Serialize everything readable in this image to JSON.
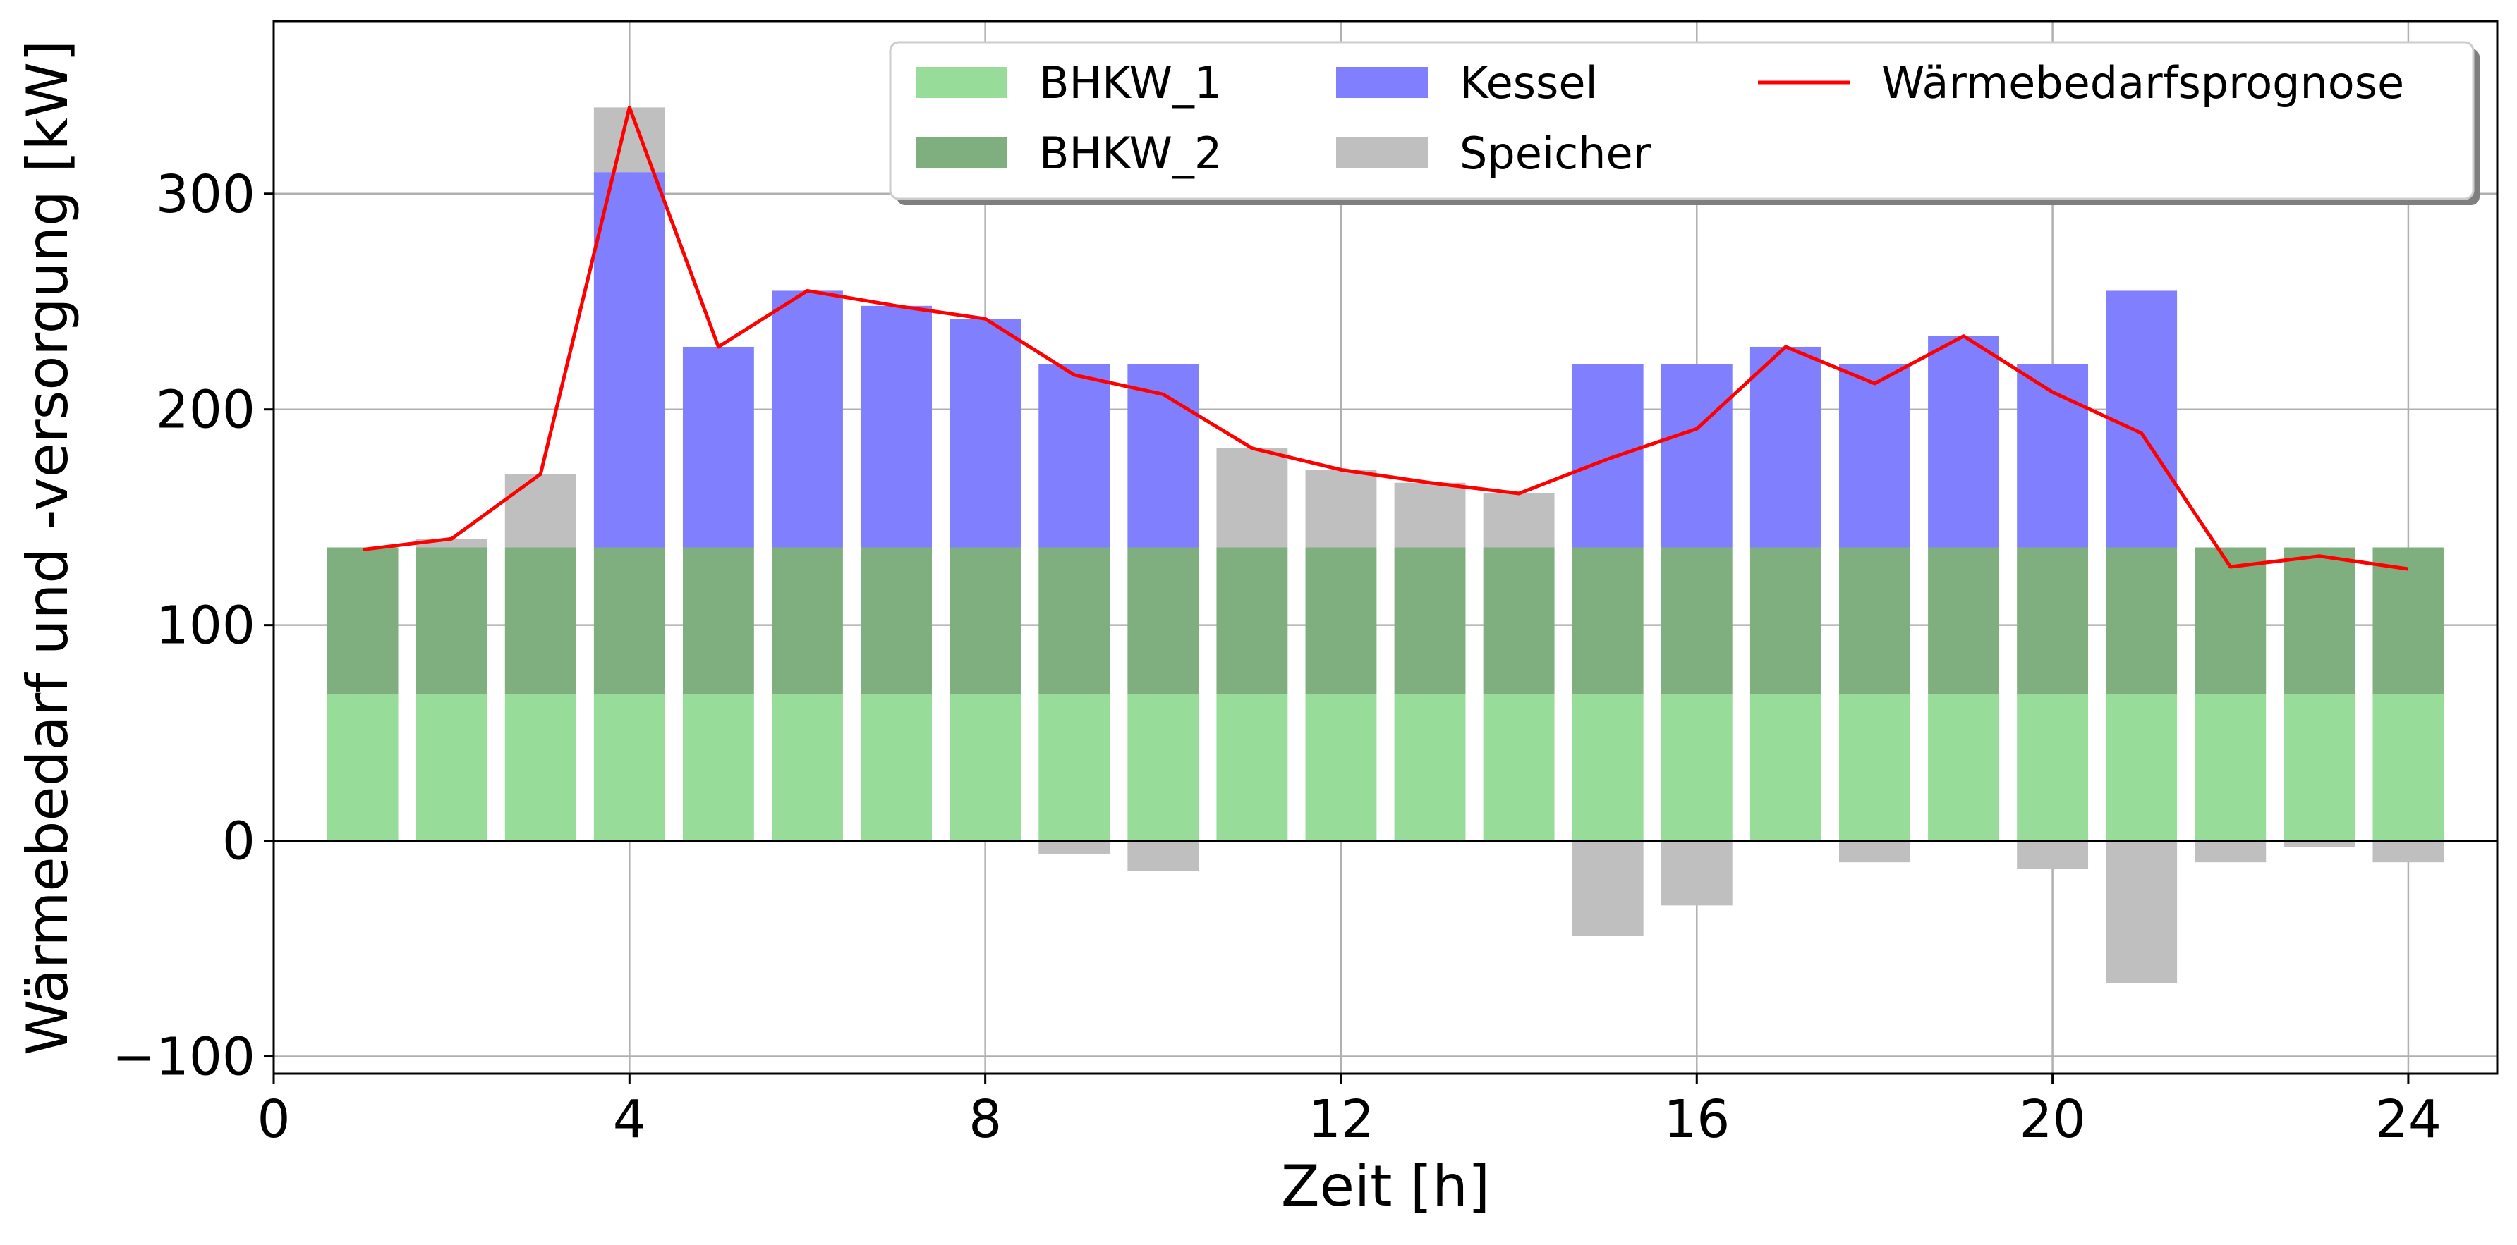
{
  "chart_data": {
    "type": "bar",
    "stacked": true,
    "xlabel": "Zeit [h]",
    "ylabel": "Wärmebedarf und -versorgung [kW]",
    "xlim": [
      0,
      25
    ],
    "ylim": [
      -108,
      380
    ],
    "xticks": [
      0,
      4,
      8,
      12,
      16,
      20,
      24
    ],
    "yticks": [
      -100,
      0,
      100,
      200,
      300
    ],
    "grid": true,
    "legend_position": "top-right",
    "x": [
      1,
      2,
      3,
      4,
      5,
      6,
      7,
      8,
      9,
      10,
      11,
      12,
      13,
      14,
      15,
      16,
      17,
      18,
      19,
      20,
      21,
      22,
      23,
      24
    ],
    "series": [
      {
        "name": "BHKW_1",
        "color": "#98dc9a",
        "values": [
          68,
          68,
          68,
          68,
          68,
          68,
          68,
          68,
          68,
          68,
          68,
          68,
          68,
          68,
          68,
          68,
          68,
          68,
          68,
          68,
          68,
          68,
          68,
          68
        ]
      },
      {
        "name": "BHKW_2",
        "color": "#7faf7f",
        "values": [
          68,
          68,
          68,
          68,
          68,
          68,
          68,
          68,
          68,
          68,
          68,
          68,
          68,
          68,
          68,
          68,
          68,
          68,
          68,
          68,
          68,
          68,
          68,
          68
        ]
      },
      {
        "name": "Kessel",
        "color": "#8080ff",
        "values": [
          0,
          0,
          0,
          174,
          93,
          119,
          112,
          106,
          85,
          85,
          0,
          0,
          0,
          0,
          85,
          85,
          93,
          85,
          98,
          85,
          119,
          0,
          0,
          0
        ]
      },
      {
        "name": "Speicher",
        "color": "#bfbfbf",
        "values": [
          0,
          4,
          34,
          30,
          0,
          0,
          0,
          0,
          -6,
          -14,
          46,
          36,
          30,
          25,
          -44,
          -30,
          0,
          -10,
          0,
          -13,
          -66,
          -10,
          -3,
          -10
        ]
      },
      {
        "name": "Wärmebedarfsprognose",
        "color": "#ff0000",
        "type": "line",
        "values": [
          135,
          140,
          170,
          340,
          229,
          255,
          248,
          242,
          216,
          207,
          182,
          172,
          166,
          161,
          177,
          191,
          229,
          212,
          234,
          208,
          189,
          127,
          132,
          126
        ]
      }
    ]
  }
}
